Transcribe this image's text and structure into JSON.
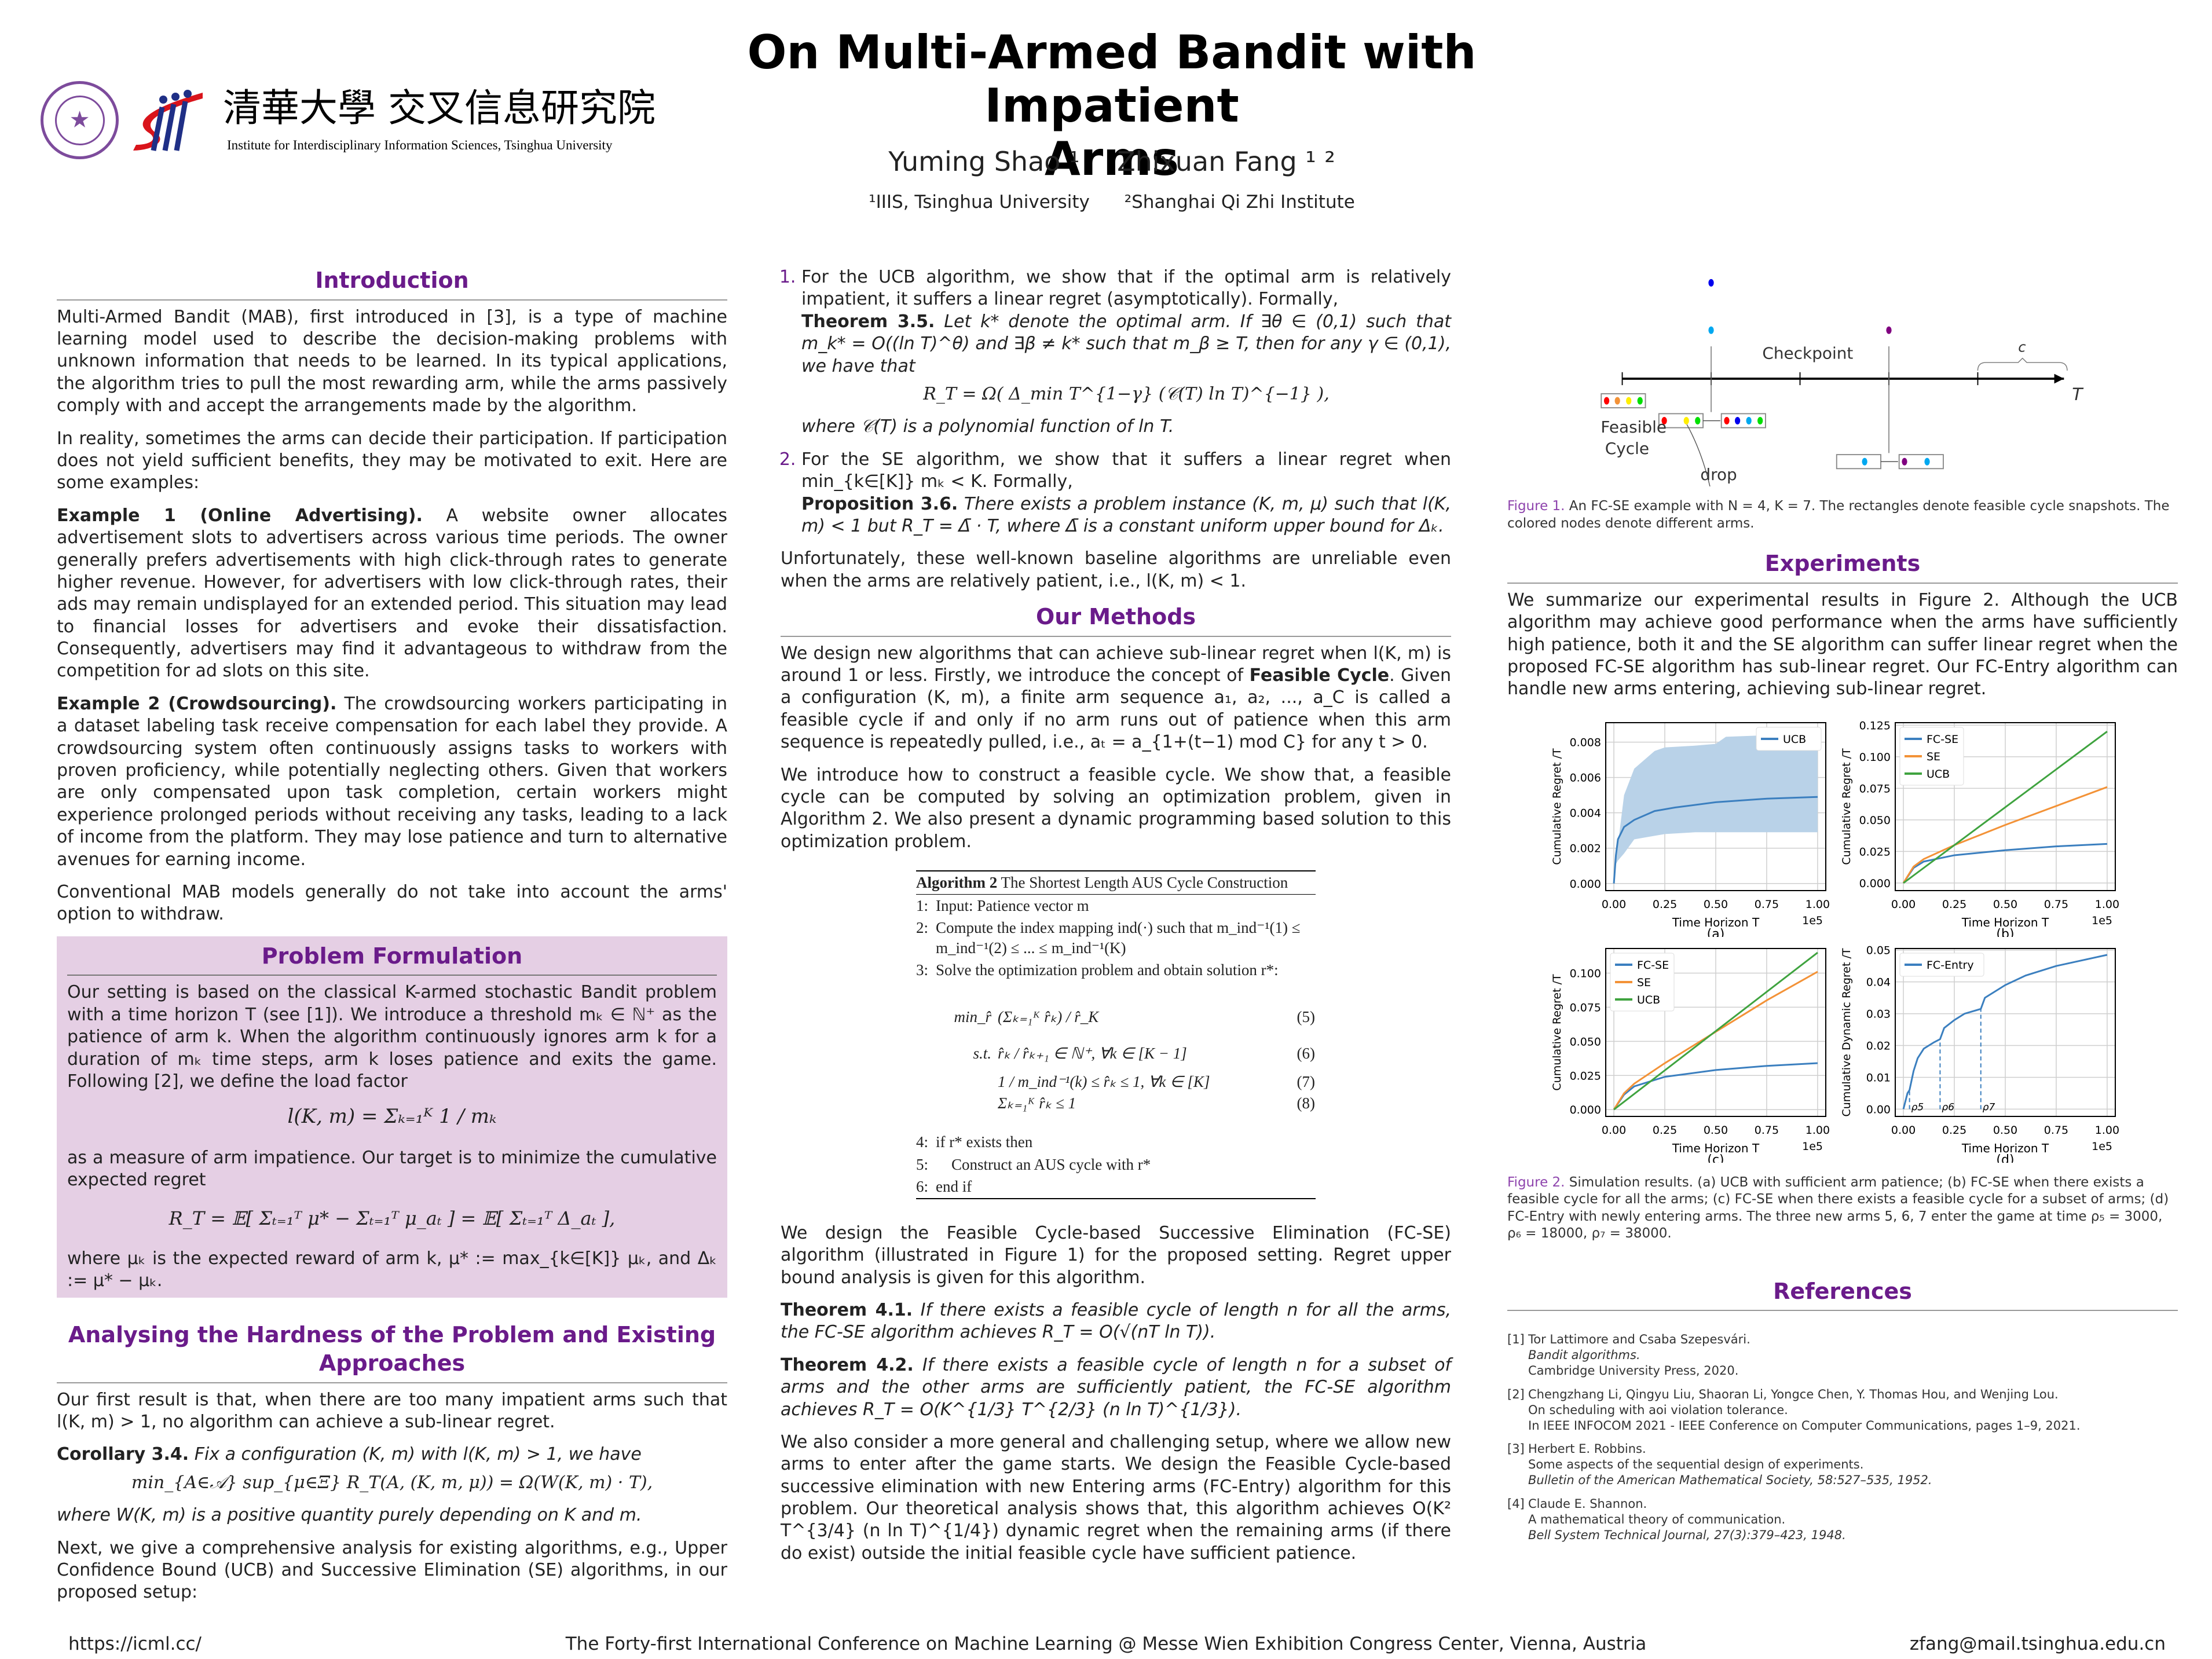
{
  "header": {
    "title_line1": "On Multi-Armed Bandit with Impatient",
    "title_line2": "Arms",
    "authors": [
      "Yuming Shao ¹",
      "Zhixuan Fang ¹ ²"
    ],
    "affiliations": [
      "¹IIIS, Tsinghua University",
      "²Shanghai Qi Zhi Institute"
    ],
    "logo_cn": "清華大學 交叉信息研究院",
    "logo_en": "Institute for Interdisciplinary Information Sciences, Tsinghua University",
    "seal_text": "TSINGHUA UNIVERSITY 1911"
  },
  "intro": {
    "title": "Introduction",
    "p1": "Multi-Armed Bandit (MAB), first introduced in [3], is a type of machine learning model used to describe the decision-making problems with unknown information that needs to be learned. In its typical applications, the algorithm tries to pull the most rewarding arm, while the arms passively comply with and accept the arrangements made by the algorithm.",
    "p2": "In reality, sometimes the arms can decide their participation. If participation does not yield sufficient benefits, they may be motivated to exit. Here are some examples:",
    "ex1_label": "Example 1 (Online Advertising).",
    "ex1": " A website owner allocates advertisement slots to advertisers across various time periods. The owner generally prefers advertisements with high click-through rates to generate higher revenue. However, for advertisers with low click-through rates, their ads may remain undisplayed for an extended period. This situation may lead to financial losses for advertisers and evoke their dissatisfaction. Consequently, advertisers may find it advantageous to withdraw from the competition for ad slots on this site.",
    "ex2_label": "Example 2 (Crowdsourcing).",
    "ex2": " The crowdsourcing workers participating in a dataset labeling task receive compensation for each label they provide. A crowdsourcing system often continuously assigns tasks to workers with proven proficiency, while potentially neglecting others. Given that workers are only compensated upon task completion, certain workers might experience prolonged periods without receiving any tasks, leading to a lack of income from the platform. They may lose patience and turn to alternative avenues for earning income.",
    "p3": "Conventional MAB models generally do not take into account the arms' option to withdraw."
  },
  "problem": {
    "title": "Problem Formulation",
    "p1": "Our setting is based on the classical K-armed stochastic Bandit problem with a time horizon T (see [1]). We introduce a threshold mₖ ∈ ℕ⁺ as the patience of arm k. When the algorithm continuously ignores arm k for a duration of mₖ time steps, arm k loses patience and exits the game. Following [2], we define the load factor",
    "eq1": "l(K, m) = Σₖ₌₁ᴷ 1 / mₖ",
    "p2": "as a measure of arm impatience. Our target is to minimize the cumulative expected regret",
    "eq2": "R_T = 𝔼[ Σₜ₌₁ᵀ μ* − Σₜ₌₁ᵀ μ_aₜ ] = 𝔼[ Σₜ₌₁ᵀ Δ_aₜ ],",
    "p3": "where μₖ is the expected reward of arm k, μ* := max_{k∈[K]} μₖ, and Δₖ := μ* − μₖ."
  },
  "hardness": {
    "title": "Analysing the Hardness of the Problem and Existing Approaches",
    "p1": "Our first result is that, when there are too many impatient arms such that l(K, m) > 1, no algorithm can achieve a sub-linear regret.",
    "cor_label": "Corollary 3.4.",
    "cor": " Fix a configuration (K, m) with l(K, m) > 1, we have",
    "eq": "min_{A∈𝒜} sup_{μ∈Ξ} R_T(A, (K, m, μ)) = Ω(W(K, m) · T),",
    "p2": "where W(K, m) is a positive quantity purely depending on K and m.",
    "p3": "Next, we give a comprehensive analysis for existing algorithms, e.g., Upper Confidence Bound (UCB) and Successive Elimination (SE) algorithms, in our proposed setup:"
  },
  "mid": {
    "item1": "For the UCB algorithm, we show that if the optimal arm is relatively impatient, it suffers a linear regret (asymptotically). Formally,",
    "thm35_label": "Theorem 3.5.",
    "thm35": " Let k* denote the optimal arm. If ∃θ ∈ (0,1) such that m_k* = O((ln T)^θ) and ∃β ≠ k* such that m_β ≥ T, then for any γ ∈ (0,1), we have that",
    "eq35": "R_T = Ω( Δ_min T^{1−γ} (𝒞(T) ln T)^{−1} ),",
    "thm35_end": "where 𝒞(T) is a polynomial function of ln T.",
    "item2": "For the SE algorithm, we show that it suffers a linear regret when min_{k∈[K]} mₖ < K. Formally,",
    "prop_label": "Proposition 3.6.",
    "prop": " There exists a problem instance (K, m, μ) such that l(K, m) < 1 but R_T = Δ̄ · T, where Δ̄ is a constant uniform upper bound for Δₖ.",
    "p1": "Unfortunately, these well-known baseline algorithms are unreliable even when the arms are relatively patient, i.e., l(K, m) < 1."
  },
  "methods": {
    "title": "Our Methods",
    "p1a": "We design new algorithms that can achieve sub-linear regret when l(K, m) is around 1 or less. Firstly, we introduce the concept of ",
    "p1b": "Feasible Cycle",
    "p1c": ". Given a configuration (K, m), a finite arm sequence a₁, a₂, ..., a_C is called a feasible cycle if and only if no arm runs out of patience when this arm sequence is repeatedly pulled, i.e., aₜ = a_{1+(t−1) mod C} for any t > 0.",
    "p2": "We introduce how to construct a feasible cycle. We show that, a feasible cycle can be computed by solving an optimization problem, given in Algorithm 2. We also present a dynamic programming based solution to this optimization problem.",
    "alg": {
      "title_bold": "Algorithm 2",
      "title": " The Shortest Length AUS Cycle Construction",
      "lines": [
        {
          "n": "1:",
          "t": "Input: Patience vector m"
        },
        {
          "n": "2:",
          "t": "Compute the index mapping ind(·) such that m_ind⁻¹(1) ≤ m_ind⁻¹(2) ≤ ... ≤ m_ind⁻¹(K)"
        },
        {
          "n": "3:",
          "t": "Solve the optimization problem and obtain solution r*:"
        }
      ],
      "eqs": [
        {
          "l": "min_r̂",
          "e": "(Σₖ₌₁ᴷ r̂ₖ) / r̂_K",
          "n": "(5)"
        },
        {
          "l": "s.t.",
          "e": "r̂ₖ / r̂ₖ₊₁ ∈ ℕ⁺,  ∀k ∈ [K − 1]",
          "n": "(6)"
        },
        {
          "l": "",
          "e": "1 / m_ind⁻¹(k) ≤ r̂ₖ ≤ 1,  ∀k ∈ [K]",
          "n": "(7)"
        },
        {
          "l": "",
          "e": "Σₖ₌₁ᴷ r̂ₖ ≤ 1",
          "n": "(8)"
        }
      ],
      "end": [
        {
          "n": "4:",
          "t": "if r* exists then"
        },
        {
          "n": "5:",
          "t": "    Construct an AUS cycle with r*"
        },
        {
          "n": "6:",
          "t": "end if"
        }
      ]
    },
    "p3": "We design the Feasible Cycle-based Successive Elimination (FC-SE) algorithm (illustrated in Figure 1) for the proposed setting. Regret upper bound analysis is given for this algorithm.",
    "thm41_label": "Theorem 4.1.",
    "thm41": " If there exists a feasible cycle of length n for all the arms, the FC-SE algorithm achieves R_T = O(√(nT ln T)).",
    "thm42_label": "Theorem 4.2.",
    "thm42": " If there exists a feasible cycle of length n for a subset of arms and the other arms are sufficiently patient, the FC-SE algorithm achieves R_T = O(K^{1/3} T^{2/3} (n ln T)^{1/3}).",
    "p4": "We also consider a more general and challenging setup, where we allow new arms to enter after the game starts. We design the Feasible Cycle-based successive elimination with new Entering arms (FC-Entry) algorithm for this problem. Our theoretical analysis shows that, this algorithm achieves O(K² T^{3/4} (n ln T)^{1/4}) dynamic regret when the remaining arms (if there do exist) outside the initial feasible cycle have sufficient patience."
  },
  "fig1": {
    "checkpoint": "Checkpoint",
    "feasible": "Feasible",
    "cycle": "Cycle",
    "drop": "drop",
    "c": "c",
    "T": "T",
    "cap_label": "Figure 1.",
    "cap": " An FC-SE example with N = 4, K = 7. The rectangles denote feasible cycle snapshots. The colored nodes denote different arms.",
    "arm_colors": [
      "#ff0000",
      "#f39237",
      "#ffee00",
      "#00e000",
      "#0000ee",
      "#00a8f0",
      "#800080"
    ]
  },
  "experiments": {
    "title": "Experiments",
    "p1": "We summarize our experimental results in Figure 2. Although the UCB algorithm may achieve good performance when the arms have sufficiently high patience, both it and the SE algorithm can suffer linear regret when the proposed FC-SE algorithm has sub-linear regret. Our FC-Entry algorithm can handle new arms entering, achieving sub-linear regret.",
    "cap_label": "Figure 2.",
    "cap": " Simulation results. (a) UCB with sufficient arm patience; (b) FC-SE when there exists a feasible cycle for all the arms; (c) FC-SE when there exists a feasible cycle for a subset of arms; (d) FC-Entry with newly entering arms. The three new arms 5, 6, 7 enter the game at time ρ₅ = 3000, ρ₆ = 18000, ρ₇ = 38000."
  },
  "chart_data": [
    {
      "type": "line",
      "label": "(a)",
      "xlabel": "Time Horizon T",
      "ylabel": "Cumulative Regret /T",
      "x_multiplier": "1e5",
      "xlim": [
        -0.04,
        1.04
      ],
      "ylim": [
        -0.0004,
        0.0091
      ],
      "xticks": [
        "0.00",
        "0.25",
        "0.50",
        "0.75",
        "1.00"
      ],
      "yticks": [
        "0.000",
        "0.002",
        "0.004",
        "0.006",
        "0.008"
      ],
      "grid": true,
      "legend": "top-right",
      "series": [
        {
          "name": "UCB",
          "color": "#3b7fbf",
          "x": [
            0,
            0.01,
            0.02,
            0.05,
            0.1,
            0.2,
            0.3,
            0.5,
            0.75,
            1.0
          ],
          "y": [
            0,
            0.0016,
            0.0025,
            0.0032,
            0.0036,
            0.0041,
            0.0043,
            0.0046,
            0.0048,
            0.0049
          ]
        }
      ],
      "band": {
        "color": "#b9d2e8",
        "x": [
          0,
          0.01,
          0.02,
          0.05,
          0.1,
          0.2,
          0.25,
          0.4,
          0.5,
          0.55,
          1.0
        ],
        "lower": [
          0,
          0.0011,
          0.0013,
          0.0017,
          0.0025,
          0.0027,
          0.0028,
          0.0029,
          0.0029,
          0.0029,
          0.0029
        ],
        "upper": [
          0,
          0.0015,
          0.0022,
          0.005,
          0.0065,
          0.0075,
          0.0077,
          0.0078,
          0.0079,
          0.0083,
          0.0085
        ]
      }
    },
    {
      "type": "line",
      "label": "(b)",
      "xlabel": "Time Horizon T",
      "ylabel": "Cumulative Regret /T",
      "x_multiplier": "1e5",
      "xlim": [
        -0.04,
        1.04
      ],
      "ylim": [
        -0.006,
        0.127
      ],
      "xticks": [
        "0.00",
        "0.25",
        "0.50",
        "0.75",
        "1.00"
      ],
      "yticks": [
        "0.000",
        "0.025",
        "0.050",
        "0.075",
        "0.100",
        "0.125"
      ],
      "grid": true,
      "legend": "top-left",
      "series": [
        {
          "name": "FC-SE",
          "color": "#3b7fbf",
          "x": [
            0,
            0.05,
            0.1,
            0.25,
            0.5,
            0.75,
            1.0
          ],
          "y": [
            0,
            0.012,
            0.017,
            0.022,
            0.026,
            0.029,
            0.031
          ]
        },
        {
          "name": "SE",
          "color": "#f39237",
          "x": [
            0,
            0.05,
            0.1,
            0.25,
            0.5,
            0.75,
            1.0
          ],
          "y": [
            0,
            0.013,
            0.019,
            0.03,
            0.046,
            0.061,
            0.076
          ]
        },
        {
          "name": "UCB",
          "color": "#3fa33f",
          "x": [
            0,
            1.0
          ],
          "y": [
            0,
            0.12
          ]
        }
      ]
    },
    {
      "type": "line",
      "label": "(c)",
      "xlabel": "Time Horizon T",
      "ylabel": "Cumulative Regret /T",
      "x_multiplier": "1e5",
      "xlim": [
        -0.04,
        1.04
      ],
      "ylim": [
        -0.005,
        0.118
      ],
      "xticks": [
        "0.00",
        "0.25",
        "0.50",
        "0.75",
        "1.00"
      ],
      "yticks": [
        "0.000",
        "0.025",
        "0.050",
        "0.075",
        "0.100"
      ],
      "grid": true,
      "legend": "top-left",
      "series": [
        {
          "name": "FC-SE",
          "color": "#3b7fbf",
          "x": [
            0,
            0.05,
            0.1,
            0.25,
            0.5,
            0.75,
            1.0
          ],
          "y": [
            0,
            0.011,
            0.017,
            0.024,
            0.029,
            0.032,
            0.034
          ]
        },
        {
          "name": "SE",
          "color": "#f39237",
          "x": [
            0,
            0.05,
            0.1,
            0.25,
            0.5,
            0.75,
            1.0
          ],
          "y": [
            0,
            0.012,
            0.019,
            0.034,
            0.057,
            0.08,
            0.101
          ]
        },
        {
          "name": "UCB",
          "color": "#3fa33f",
          "x": [
            0,
            1.0
          ],
          "y": [
            0,
            0.115
          ]
        }
      ]
    },
    {
      "type": "line",
      "label": "(d)",
      "xlabel": "Time Horizon T",
      "ylabel": "Cumulative Dynamic Regret /T",
      "x_multiplier": "1e5",
      "xlim": [
        -0.04,
        1.04
      ],
      "ylim": [
        -0.0023,
        0.0505
      ],
      "xticks": [
        "0.00",
        "0.25",
        "0.50",
        "0.75",
        "1.00"
      ],
      "yticks": [
        "0.00",
        "0.01",
        "0.02",
        "0.03",
        "0.04",
        "0.05"
      ],
      "grid": true,
      "legend": "top-left",
      "series": [
        {
          "name": "FC-Entry",
          "color": "#3b7fbf",
          "x": [
            0,
            0.02,
            0.03,
            0.05,
            0.07,
            0.1,
            0.15,
            0.18,
            0.2,
            0.25,
            0.3,
            0.38,
            0.4,
            0.5,
            0.6,
            0.75,
            1.0
          ],
          "y": [
            0,
            0.005,
            0.006,
            0.012,
            0.016,
            0.019,
            0.021,
            0.022,
            0.0255,
            0.028,
            0.03,
            0.0315,
            0.035,
            0.039,
            0.042,
            0.045,
            0.0485
          ]
        }
      ],
      "vlines": [
        {
          "x": 0.03,
          "label": "ρ5"
        },
        {
          "x": 0.18,
          "label": "ρ6"
        },
        {
          "x": 0.38,
          "label": "ρ7"
        }
      ]
    }
  ],
  "references": {
    "title": "References",
    "items": [
      {
        "n": "[1]",
        "a": "Tor Lattimore and Csaba Szepesvári.",
        "b": "Bandit algorithms.",
        "c": "Cambridge University Press, 2020."
      },
      {
        "n": "[2]",
        "a": "Chengzhang Li, Qingyu Liu, Shaoran Li, Yongce Chen, Y. Thomas Hou, and Wenjing Lou.",
        "b": "On scheduling with aoi violation tolerance.",
        "c": "In IEEE INFOCOM 2021 - IEEE Conference on Computer Communications, pages 1–9, 2021."
      },
      {
        "n": "[3]",
        "a": "Herbert E. Robbins.",
        "b": "Some aspects of the sequential design of experiments.",
        "c": "Bulletin of the American Mathematical Society, 58:527–535, 1952."
      },
      {
        "n": "[4]",
        "a": "Claude E. Shannon.",
        "b": "A mathematical theory of communication.",
        "c": "Bell System Technical Journal, 27(3):379–423, 1948."
      }
    ]
  },
  "footer": {
    "left": "https://icml.cc/",
    "center": "The Forty-first International Conference on Machine Learning @ Messe Wien Exhibition Congress Center, Vienna, Austria",
    "right": "zfang@mail.tsinghua.edu.cn"
  }
}
